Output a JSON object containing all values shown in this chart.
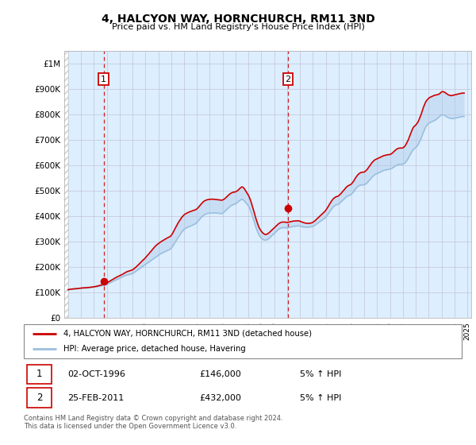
{
  "title": "4, HALCYON WAY, HORNCHURCH, RM11 3ND",
  "subtitle": "Price paid vs. HM Land Registry's House Price Index (HPI)",
  "legend_line1": "4, HALCYON WAY, HORNCHURCH, RM11 3ND (detached house)",
  "legend_line2": "HPI: Average price, detached house, Havering",
  "annotation1_label": "1",
  "annotation1_date": "02-OCT-1996",
  "annotation1_price": "£146,000",
  "annotation1_hpi": "5% ↑ HPI",
  "annotation2_label": "2",
  "annotation2_date": "25-FEB-2011",
  "annotation2_price": "£432,000",
  "annotation2_hpi": "5% ↑ HPI",
  "footnote": "Contains HM Land Registry data © Crown copyright and database right 2024.\nThis data is licensed under the Open Government Licence v3.0.",
  "hpi_color": "#9bbfde",
  "price_color": "#cc0000",
  "dashed_line_color": "#cc0000",
  "annotation_box_color": "#cc0000",
  "fill_color": "#ddeeff",
  "ylim": [
    0,
    1050000
  ],
  "yticks": [
    0,
    100000,
    200000,
    300000,
    400000,
    500000,
    600000,
    700000,
    800000,
    900000,
    1000000
  ],
  "ytick_labels": [
    "£0",
    "£100K",
    "£200K",
    "£300K",
    "£400K",
    "£500K",
    "£600K",
    "£700K",
    "£800K",
    "£900K",
    "£1M"
  ],
  "hpi_t": [
    1994.0,
    1994.08,
    1994.17,
    1994.25,
    1994.33,
    1994.42,
    1994.5,
    1994.58,
    1994.67,
    1994.75,
    1994.83,
    1994.92,
    1995.0,
    1995.08,
    1995.17,
    1995.25,
    1995.33,
    1995.42,
    1995.5,
    1995.58,
    1995.67,
    1995.75,
    1995.83,
    1995.92,
    1996.0,
    1996.08,
    1996.17,
    1996.25,
    1996.33,
    1996.42,
    1996.5,
    1996.58,
    1996.67,
    1996.75,
    1996.83,
    1996.92,
    1997.0,
    1997.08,
    1997.17,
    1997.25,
    1997.33,
    1997.42,
    1997.5,
    1997.58,
    1997.67,
    1997.75,
    1997.83,
    1997.92,
    1998.0,
    1998.08,
    1998.17,
    1998.25,
    1998.33,
    1998.42,
    1998.5,
    1998.58,
    1998.67,
    1998.75,
    1998.83,
    1998.92,
    1999.0,
    1999.08,
    1999.17,
    1999.25,
    1999.33,
    1999.42,
    1999.5,
    1999.58,
    1999.67,
    1999.75,
    1999.83,
    1999.92,
    2000.0,
    2000.08,
    2000.17,
    2000.25,
    2000.33,
    2000.42,
    2000.5,
    2000.58,
    2000.67,
    2000.75,
    2000.83,
    2000.92,
    2001.0,
    2001.08,
    2001.17,
    2001.25,
    2001.33,
    2001.42,
    2001.5,
    2001.58,
    2001.67,
    2001.75,
    2001.83,
    2001.92,
    2002.0,
    2002.08,
    2002.17,
    2002.25,
    2002.33,
    2002.42,
    2002.5,
    2002.58,
    2002.67,
    2002.75,
    2002.83,
    2002.92,
    2003.0,
    2003.08,
    2003.17,
    2003.25,
    2003.33,
    2003.42,
    2003.5,
    2003.58,
    2003.67,
    2003.75,
    2003.83,
    2003.92,
    2004.0,
    2004.08,
    2004.17,
    2004.25,
    2004.33,
    2004.42,
    2004.5,
    2004.58,
    2004.67,
    2004.75,
    2004.83,
    2004.92,
    2005.0,
    2005.08,
    2005.17,
    2005.25,
    2005.33,
    2005.42,
    2005.5,
    2005.58,
    2005.67,
    2005.75,
    2005.83,
    2005.92,
    2006.0,
    2006.08,
    2006.17,
    2006.25,
    2006.33,
    2006.42,
    2006.5,
    2006.58,
    2006.67,
    2006.75,
    2006.83,
    2006.92,
    2007.0,
    2007.08,
    2007.17,
    2007.25,
    2007.33,
    2007.42,
    2007.5,
    2007.58,
    2007.67,
    2007.75,
    2007.83,
    2007.92,
    2008.0,
    2008.08,
    2008.17,
    2008.25,
    2008.33,
    2008.42,
    2008.5,
    2008.58,
    2008.67,
    2008.75,
    2008.83,
    2008.92,
    2009.0,
    2009.08,
    2009.17,
    2009.25,
    2009.33,
    2009.42,
    2009.5,
    2009.58,
    2009.67,
    2009.75,
    2009.83,
    2009.92,
    2010.0,
    2010.08,
    2010.17,
    2010.25,
    2010.33,
    2010.42,
    2010.5,
    2010.58,
    2010.67,
    2010.75,
    2010.83,
    2010.92,
    2011.0,
    2011.08,
    2011.17,
    2011.25,
    2011.33,
    2011.42,
    2011.5,
    2011.58,
    2011.67,
    2011.75,
    2011.83,
    2011.92,
    2012.0,
    2012.08,
    2012.17,
    2012.25,
    2012.33,
    2012.42,
    2012.5,
    2012.58,
    2012.67,
    2012.75,
    2012.83,
    2012.92,
    2013.0,
    2013.08,
    2013.17,
    2013.25,
    2013.33,
    2013.42,
    2013.5,
    2013.58,
    2013.67,
    2013.75,
    2013.83,
    2013.92,
    2014.0,
    2014.08,
    2014.17,
    2014.25,
    2014.33,
    2014.42,
    2014.5,
    2014.58,
    2014.67,
    2014.75,
    2014.83,
    2014.92,
    2015.0,
    2015.08,
    2015.17,
    2015.25,
    2015.33,
    2015.42,
    2015.5,
    2015.58,
    2015.67,
    2015.75,
    2015.83,
    2015.92,
    2016.0,
    2016.08,
    2016.17,
    2016.25,
    2016.33,
    2016.42,
    2016.5,
    2016.58,
    2016.67,
    2016.75,
    2016.83,
    2016.92,
    2017.0,
    2017.08,
    2017.17,
    2017.25,
    2017.33,
    2017.42,
    2017.5,
    2017.58,
    2017.67,
    2017.75,
    2017.83,
    2017.92,
    2018.0,
    2018.08,
    2018.17,
    2018.25,
    2018.33,
    2018.42,
    2018.5,
    2018.58,
    2018.67,
    2018.75,
    2018.83,
    2018.92,
    2019.0,
    2019.08,
    2019.17,
    2019.25,
    2019.33,
    2019.42,
    2019.5,
    2019.58,
    2019.67,
    2019.75,
    2019.83,
    2019.92,
    2020.0,
    2020.08,
    2020.17,
    2020.25,
    2020.33,
    2020.42,
    2020.5,
    2020.58,
    2020.67,
    2020.75,
    2020.83,
    2020.92,
    2021.0,
    2021.08,
    2021.17,
    2021.25,
    2021.33,
    2021.42,
    2021.5,
    2021.58,
    2021.67,
    2021.75,
    2021.83,
    2021.92,
    2022.0,
    2022.08,
    2022.17,
    2022.25,
    2022.33,
    2022.42,
    2022.5,
    2022.58,
    2022.67,
    2022.75,
    2022.83,
    2022.92,
    2023.0,
    2023.08,
    2023.17,
    2023.25,
    2023.33,
    2023.42,
    2023.5,
    2023.58,
    2023.67,
    2023.75,
    2023.83,
    2023.92,
    2024.0,
    2024.08,
    2024.17,
    2024.25,
    2024.33,
    2024.42,
    2024.5,
    2024.58,
    2024.67,
    2024.75
  ],
  "hpi_v": [
    112000,
    112500,
    113000,
    113500,
    114000,
    114500,
    115000,
    115200,
    115500,
    116000,
    116500,
    117000,
    117500,
    117800,
    118000,
    118200,
    118500,
    118700,
    119000,
    119500,
    120000,
    120500,
    121000,
    121500,
    122000,
    122500,
    123000,
    123800,
    124500,
    125500,
    126500,
    127500,
    128500,
    129000,
    130000,
    131000,
    133000,
    135000,
    137000,
    139000,
    141000,
    143000,
    145000,
    147000,
    149000,
    151000,
    153000,
    155000,
    157000,
    159000,
    161000,
    163000,
    165000,
    167000,
    169000,
    170000,
    171000,
    172000,
    173000,
    174000,
    176000,
    178000,
    181000,
    184000,
    187000,
    190000,
    193000,
    196000,
    199000,
    202000,
    205000,
    208000,
    211000,
    214000,
    217000,
    220000,
    223000,
    226000,
    229000,
    232000,
    235000,
    238000,
    241000,
    244000,
    247000,
    250000,
    253000,
    255000,
    257000,
    259000,
    261000,
    263000,
    265000,
    267000,
    269000,
    271000,
    275000,
    280000,
    287000,
    294000,
    300000,
    307000,
    314000,
    320000,
    327000,
    333000,
    339000,
    344000,
    349000,
    352000,
    355000,
    357000,
    359000,
    361000,
    362000,
    364000,
    366000,
    368000,
    370000,
    372000,
    376000,
    381000,
    386000,
    391000,
    396000,
    400000,
    404000,
    407000,
    409000,
    411000,
    412000,
    413000,
    413000,
    413000,
    413500,
    414000,
    414500,
    414000,
    413500,
    413000,
    412500,
    412000,
    411500,
    411000,
    413000,
    416000,
    420000,
    424000,
    428000,
    432000,
    436000,
    440000,
    443000,
    445000,
    447000,
    448000,
    450000,
    453000,
    456000,
    460000,
    463000,
    466000,
    468000,
    466000,
    462000,
    457000,
    452000,
    447000,
    441000,
    433000,
    423000,
    411000,
    398000,
    384000,
    370000,
    357000,
    345000,
    335000,
    327000,
    320000,
    315000,
    311000,
    308000,
    307000,
    307000,
    308000,
    310000,
    313000,
    317000,
    321000,
    325000,
    329000,
    333000,
    337000,
    341000,
    345000,
    349000,
    352000,
    354000,
    355000,
    356000,
    356000,
    356000,
    355000,
    355000,
    356000,
    357000,
    358000,
    359000,
    360000,
    361000,
    361000,
    362000,
    362000,
    363000,
    363000,
    362000,
    361000,
    360000,
    359000,
    358000,
    358000,
    358000,
    358000,
    358000,
    358000,
    359000,
    360000,
    361000,
    363000,
    366000,
    369000,
    372000,
    375000,
    378000,
    381000,
    384000,
    387000,
    390000,
    393000,
    397000,
    402000,
    408000,
    414000,
    421000,
    427000,
    432000,
    437000,
    441000,
    444000,
    446000,
    447000,
    449000,
    452000,
    456000,
    460000,
    464000,
    468000,
    472000,
    476000,
    479000,
    481000,
    483000,
    485000,
    488000,
    492000,
    497000,
    503000,
    509000,
    514000,
    518000,
    521000,
    523000,
    524000,
    524000,
    524000,
    525000,
    527000,
    530000,
    534000,
    539000,
    544000,
    549000,
    554000,
    558000,
    562000,
    565000,
    567000,
    569000,
    571000,
    573000,
    575000,
    577000,
    579000,
    581000,
    582000,
    583000,
    584000,
    585000,
    585000,
    586000,
    588000,
    590000,
    593000,
    596000,
    599000,
    601000,
    603000,
    604000,
    605000,
    605000,
    605000,
    606000,
    608000,
    611000,
    616000,
    622000,
    629000,
    637000,
    645000,
    653000,
    660000,
    665000,
    668000,
    671000,
    676000,
    682000,
    690000,
    699000,
    709000,
    720000,
    731000,
    741000,
    750000,
    757000,
    762000,
    766000,
    769000,
    771000,
    773000,
    775000,
    777000,
    779000,
    782000,
    785000,
    789000,
    793000,
    797000,
    800000,
    800000,
    799000,
    797000,
    794000,
    791000,
    789000,
    787000,
    786000,
    785000,
    785000,
    785000,
    786000,
    787000,
    788000,
    789000,
    790000,
    791000,
    792000,
    793000,
    793000,
    793000
  ],
  "price_t": [
    1994.0,
    1994.08,
    1994.17,
    1994.25,
    1994.33,
    1994.42,
    1994.5,
    1994.58,
    1994.67,
    1994.75,
    1994.83,
    1994.92,
    1995.0,
    1995.08,
    1995.17,
    1995.25,
    1995.33,
    1995.42,
    1995.5,
    1995.58,
    1995.67,
    1995.75,
    1995.83,
    1995.92,
    1996.0,
    1996.08,
    1996.17,
    1996.25,
    1996.33,
    1996.42,
    1996.5,
    1996.58,
    1996.67,
    1996.75,
    1996.83,
    1996.92,
    1997.0,
    1997.08,
    1997.17,
    1997.25,
    1997.33,
    1997.42,
    1997.5,
    1997.58,
    1997.67,
    1997.75,
    1997.83,
    1997.92,
    1998.0,
    1998.08,
    1998.17,
    1998.25,
    1998.33,
    1998.42,
    1998.5,
    1998.58,
    1998.67,
    1998.75,
    1998.83,
    1998.92,
    1999.0,
    1999.08,
    1999.17,
    1999.25,
    1999.33,
    1999.42,
    1999.5,
    1999.58,
    1999.67,
    1999.75,
    1999.83,
    1999.92,
    2000.0,
    2000.08,
    2000.17,
    2000.25,
    2000.33,
    2000.42,
    2000.5,
    2000.58,
    2000.67,
    2000.75,
    2000.83,
    2000.92,
    2001.0,
    2001.08,
    2001.17,
    2001.25,
    2001.33,
    2001.42,
    2001.5,
    2001.58,
    2001.67,
    2001.75,
    2001.83,
    2001.92,
    2002.0,
    2002.08,
    2002.17,
    2002.25,
    2002.33,
    2002.42,
    2002.5,
    2002.58,
    2002.67,
    2002.75,
    2002.83,
    2002.92,
    2003.0,
    2003.08,
    2003.17,
    2003.25,
    2003.33,
    2003.42,
    2003.5,
    2003.58,
    2003.67,
    2003.75,
    2003.83,
    2003.92,
    2004.0,
    2004.08,
    2004.17,
    2004.25,
    2004.33,
    2004.42,
    2004.5,
    2004.58,
    2004.67,
    2004.75,
    2004.83,
    2004.92,
    2005.0,
    2005.08,
    2005.17,
    2005.25,
    2005.33,
    2005.42,
    2005.5,
    2005.58,
    2005.67,
    2005.75,
    2005.83,
    2005.92,
    2006.0,
    2006.08,
    2006.17,
    2006.25,
    2006.33,
    2006.42,
    2006.5,
    2006.58,
    2006.67,
    2006.75,
    2006.83,
    2006.92,
    2007.0,
    2007.08,
    2007.17,
    2007.25,
    2007.33,
    2007.42,
    2007.5,
    2007.58,
    2007.67,
    2007.75,
    2007.83,
    2007.92,
    2008.0,
    2008.08,
    2008.17,
    2008.25,
    2008.33,
    2008.42,
    2008.5,
    2008.58,
    2008.67,
    2008.75,
    2008.83,
    2008.92,
    2009.0,
    2009.08,
    2009.17,
    2009.25,
    2009.33,
    2009.42,
    2009.5,
    2009.58,
    2009.67,
    2009.75,
    2009.83,
    2009.92,
    2010.0,
    2010.08,
    2010.17,
    2010.25,
    2010.33,
    2010.42,
    2010.5,
    2010.58,
    2010.67,
    2010.75,
    2010.83,
    2010.92,
    2011.0,
    2011.08,
    2011.17,
    2011.25,
    2011.33,
    2011.42,
    2011.5,
    2011.58,
    2011.67,
    2011.75,
    2011.83,
    2011.92,
    2012.0,
    2012.08,
    2012.17,
    2012.25,
    2012.33,
    2012.42,
    2012.5,
    2012.58,
    2012.67,
    2012.75,
    2012.83,
    2012.92,
    2013.0,
    2013.08,
    2013.17,
    2013.25,
    2013.33,
    2013.42,
    2013.5,
    2013.58,
    2013.67,
    2013.75,
    2013.83,
    2013.92,
    2014.0,
    2014.08,
    2014.17,
    2014.25,
    2014.33,
    2014.42,
    2014.5,
    2014.58,
    2014.67,
    2014.75,
    2014.83,
    2014.92,
    2015.0,
    2015.08,
    2015.17,
    2015.25,
    2015.33,
    2015.42,
    2015.5,
    2015.58,
    2015.67,
    2015.75,
    2015.83,
    2015.92,
    2016.0,
    2016.08,
    2016.17,
    2016.25,
    2016.33,
    2016.42,
    2016.5,
    2016.58,
    2016.67,
    2016.75,
    2016.83,
    2016.92,
    2017.0,
    2017.08,
    2017.17,
    2017.25,
    2017.33,
    2017.42,
    2017.5,
    2017.58,
    2017.67,
    2017.75,
    2017.83,
    2017.92,
    2018.0,
    2018.08,
    2018.17,
    2018.25,
    2018.33,
    2018.42,
    2018.5,
    2018.58,
    2018.67,
    2018.75,
    2018.83,
    2018.92,
    2019.0,
    2019.08,
    2019.17,
    2019.25,
    2019.33,
    2019.42,
    2019.5,
    2019.58,
    2019.67,
    2019.75,
    2019.83,
    2019.92,
    2020.0,
    2020.08,
    2020.17,
    2020.25,
    2020.33,
    2020.42,
    2020.5,
    2020.58,
    2020.67,
    2020.75,
    2020.83,
    2020.92,
    2021.0,
    2021.08,
    2021.17,
    2021.25,
    2021.33,
    2021.42,
    2021.5,
    2021.58,
    2021.67,
    2021.75,
    2021.83,
    2021.92,
    2022.0,
    2022.08,
    2022.17,
    2022.25,
    2022.33,
    2022.42,
    2022.5,
    2022.58,
    2022.67,
    2022.75,
    2022.83,
    2022.92,
    2023.0,
    2023.08,
    2023.17,
    2023.25,
    2023.33,
    2023.42,
    2023.5,
    2023.58,
    2023.67,
    2023.75,
    2023.83,
    2023.92,
    2024.0,
    2024.08,
    2024.17,
    2024.25,
    2024.33,
    2024.42,
    2024.5,
    2024.58,
    2024.67,
    2024.75
  ],
  "price_v": [
    112000,
    112800,
    113500,
    114200,
    114800,
    115300,
    115700,
    115900,
    116200,
    116700,
    117300,
    118000,
    118600,
    118900,
    119100,
    119300,
    119600,
    119900,
    120200,
    120700,
    121200,
    121700,
    122300,
    122900,
    123600,
    124200,
    124900,
    125900,
    127000,
    128200,
    129500,
    130900,
    132000,
    133000,
    134500,
    136000,
    138500,
    141000,
    143500,
    146000,
    148500,
    151000,
    153500,
    156000,
    158500,
    161000,
    163000,
    165000,
    167000,
    169000,
    171000,
    173500,
    176000,
    178500,
    181000,
    183000,
    184500,
    186000,
    187500,
    188500,
    190000,
    193000,
    196500,
    200000,
    204000,
    208000,
    212000,
    216500,
    221000,
    225000,
    229000,
    233000,
    237500,
    242000,
    247000,
    252000,
    257000,
    262000,
    267000,
    272000,
    277000,
    282000,
    286000,
    290000,
    293000,
    296000,
    299000,
    302000,
    304500,
    307000,
    309500,
    312000,
    314500,
    317000,
    319000,
    321000,
    325000,
    331000,
    339000,
    347000,
    355000,
    363000,
    371000,
    378000,
    385000,
    391000,
    397000,
    402000,
    406000,
    409500,
    412000,
    414000,
    416000,
    418000,
    419500,
    421000,
    422500,
    424000,
    425500,
    427000,
    430000,
    434000,
    439000,
    444000,
    449000,
    454000,
    458000,
    461000,
    463000,
    465000,
    466000,
    467000,
    467500,
    467500,
    468000,
    468000,
    467500,
    467000,
    466500,
    466000,
    465500,
    465000,
    464500,
    464000,
    465000,
    467000,
    470000,
    474000,
    478000,
    482000,
    486000,
    489500,
    492000,
    494000,
    495500,
    496000,
    497000,
    499000,
    502000,
    506000,
    510000,
    514000,
    516500,
    514500,
    510000,
    504000,
    497000,
    490000,
    483000,
    474000,
    463000,
    450000,
    436000,
    421000,
    406000,
    392000,
    378000,
    366000,
    356000,
    348000,
    342000,
    337000,
    333000,
    330000,
    329000,
    330000,
    332000,
    335000,
    339000,
    343000,
    347000,
    351000,
    355000,
    359000,
    363000,
    367000,
    371000,
    374000,
    376000,
    377500,
    378000,
    378000,
    378000,
    377000,
    376500,
    377000,
    378000,
    379000,
    380000,
    381000,
    382000,
    382000,
    382500,
    382500,
    383000,
    383000,
    381000,
    379500,
    378000,
    376500,
    375000,
    374000,
    373500,
    373000,
    373000,
    373000,
    374000,
    375000,
    377000,
    380000,
    383000,
    387000,
    391000,
    395000,
    399000,
    403000,
    407000,
    411000,
    415000,
    419000,
    424000,
    430000,
    437000,
    444000,
    451000,
    458000,
    464000,
    469000,
    473000,
    476000,
    478000,
    479000,
    481000,
    485000,
    489000,
    494000,
    499000,
    504000,
    509000,
    514000,
    518000,
    521000,
    523000,
    525000,
    528000,
    533000,
    539000,
    546000,
    553000,
    559000,
    564000,
    568000,
    571000,
    573000,
    574000,
    574000,
    575000,
    578000,
    582000,
    587000,
    593000,
    599000,
    605000,
    611000,
    616000,
    620000,
    623000,
    625000,
    627000,
    629000,
    631000,
    633000,
    635000,
    637000,
    639000,
    640000,
    641000,
    642000,
    643000,
    643000,
    644000,
    646000,
    649000,
    653000,
    657000,
    661000,
    664000,
    667000,
    668000,
    669000,
    669000,
    669000,
    670000,
    673000,
    678000,
    685000,
    693000,
    702000,
    713000,
    724000,
    735000,
    745000,
    752000,
    756000,
    760000,
    765000,
    772000,
    781000,
    791000,
    803000,
    815000,
    828000,
    839000,
    849000,
    856000,
    861000,
    865000,
    868000,
    870000,
    872000,
    874000,
    876000,
    877000,
    878000,
    879000,
    880000,
    882000,
    886000,
    890000,
    891000,
    890000,
    888000,
    885000,
    882000,
    879000,
    877000,
    876000,
    875000,
    876000,
    877000,
    878000,
    879000,
    880000,
    881000,
    882000,
    883000,
    884000,
    885000,
    885000,
    885000
  ],
  "sale1_x": 1996.75,
  "sale1_y": 146000,
  "sale2_x": 2011.08,
  "sale2_y": 432000,
  "xlim_left": 1993.7,
  "xlim_right": 2025.3,
  "bg_color": "#ffffff",
  "plot_bg_color": "#ddeeff",
  "grid_color": "#bbbbcc",
  "hatch_color": "#cccccc"
}
